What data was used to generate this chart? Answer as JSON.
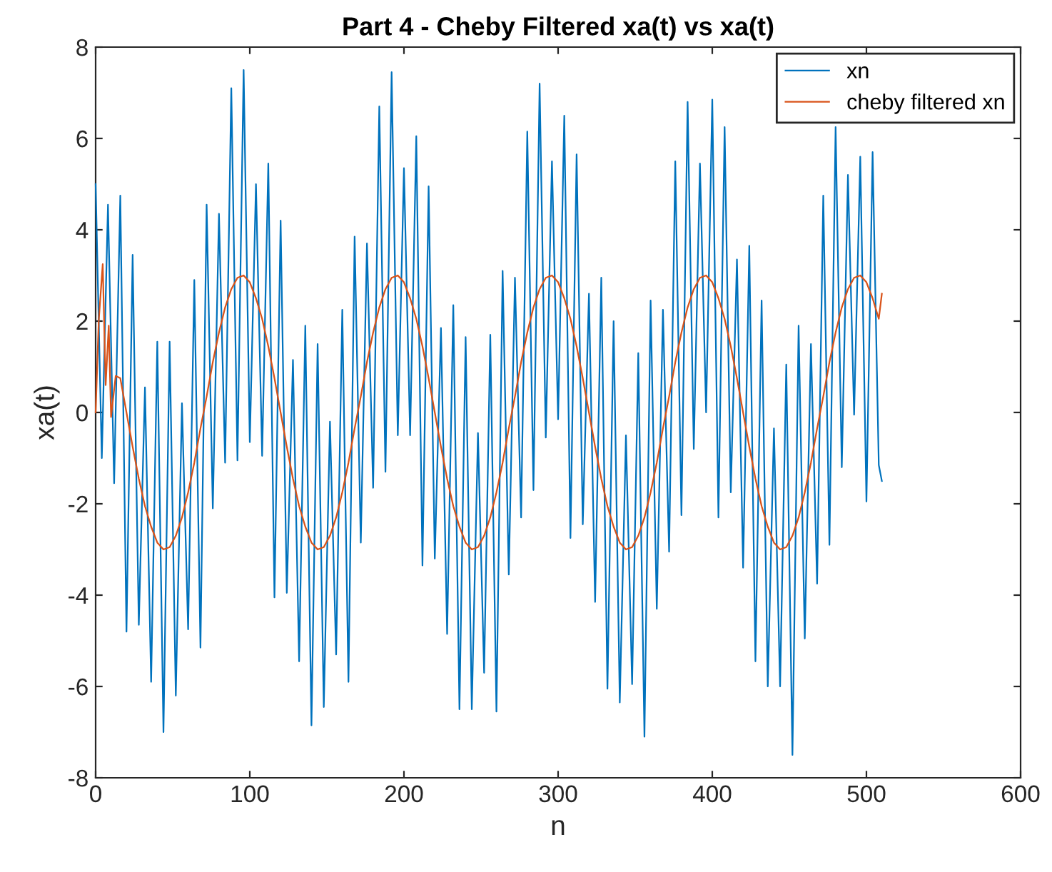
{
  "chart_data": {
    "type": "line",
    "title": "Part 4 - Cheby Filtered xa(t) vs xa(t)",
    "xlabel": "n",
    "ylabel": "xa(t)",
    "xlim": [
      0,
      600
    ],
    "xticks": [
      0,
      100,
      200,
      300,
      400,
      500,
      600
    ],
    "ylim": [
      -8,
      8
    ],
    "yticks": [
      -8,
      -6,
      -4,
      -2,
      0,
      2,
      4,
      6,
      8
    ],
    "grid": false,
    "legend": "top right",
    "line_style": "solid",
    "marker": "none",
    "series": [
      {
        "name": "xn",
        "color": "#0072bd",
        "x": [
          0,
          4,
          8,
          12,
          16,
          20,
          24,
          28,
          32,
          36,
          40,
          44,
          48,
          52,
          56,
          60,
          64,
          68,
          72,
          76,
          80,
          84,
          88,
          92,
          96,
          100,
          104,
          108,
          112,
          116,
          120,
          124,
          128,
          132,
          136,
          140,
          144,
          148,
          152,
          156,
          160,
          164,
          168,
          172,
          176,
          180,
          184,
          188,
          192,
          196,
          200,
          204,
          208,
          212,
          216,
          220,
          224,
          228,
          232,
          236,
          240,
          244,
          248,
          252,
          256,
          260,
          264,
          268,
          272,
          276,
          280,
          284,
          288,
          292,
          296,
          300,
          304,
          308,
          312,
          316,
          320,
          324,
          328,
          332,
          336,
          340,
          344,
          348,
          352,
          356,
          360,
          364,
          368,
          372,
          376,
          380,
          384,
          388,
          392,
          396,
          400,
          404,
          408,
          412,
          416,
          420,
          424,
          428,
          432,
          436,
          440,
          444,
          448,
          452,
          456,
          460,
          464,
          468,
          472,
          476,
          480,
          484,
          488,
          492,
          496,
          500,
          504,
          508,
          510
        ],
        "values": [
          5.0,
          -1.0,
          4.55,
          -1.55,
          4.75,
          -4.8,
          3.45,
          -4.65,
          0.55,
          -5.9,
          1.55,
          -7.0,
          1.55,
          -6.2,
          0.2,
          -4.75,
          2.9,
          -5.15,
          4.55,
          -2.1,
          4.35,
          -1.1,
          7.1,
          -1.05,
          7.5,
          -0.65,
          5.0,
          -0.95,
          5.45,
          -4.05,
          4.2,
          -3.95,
          1.15,
          -5.45,
          1.9,
          -6.85,
          1.5,
          -6.45,
          -0.2,
          -5.3,
          2.25,
          -5.9,
          3.85,
          -2.85,
          3.7,
          -1.65,
          6.7,
          -1.3,
          7.45,
          -0.5,
          5.35,
          -0.5,
          6.05,
          -3.35,
          4.95,
          -3.2,
          1.85,
          -4.85,
          2.35,
          -6.5,
          1.65,
          -6.5,
          -0.45,
          -5.7,
          1.7,
          -6.55,
          3.1,
          -3.55,
          2.95,
          -2.3,
          6.15,
          -1.7,
          7.2,
          -0.55,
          5.5,
          -0.15,
          6.5,
          -2.75,
          5.65,
          -2.45,
          2.6,
          -4.15,
          2.95,
          -6.05,
          2.0,
          -6.35,
          -0.5,
          -5.95,
          1.3,
          -7.1,
          2.45,
          -4.3,
          2.25,
          -3.05,
          5.5,
          -2.25,
          6.8,
          -0.8,
          5.45,
          0.0,
          6.85,
          -2.3,
          6.25,
          -1.75,
          3.35,
          -3.4,
          3.65,
          -5.45,
          2.45,
          -6.0,
          -0.35,
          -6.0,
          1.05,
          -7.5,
          1.9,
          -4.95,
          1.5,
          -3.75,
          4.75,
          -2.9,
          6.25,
          -1.2,
          5.2,
          -0.05,
          5.6,
          -1.95,
          5.7,
          -1.15,
          -1.5
        ]
      },
      {
        "name": "cheby filtered xn",
        "color": "#d95319",
        "x": [
          0,
          2,
          4.6,
          6.5,
          8.5,
          10,
          13,
          16,
          20,
          24,
          28,
          32,
          36,
          40,
          44,
          48,
          52,
          56,
          60,
          64,
          68,
          72,
          76,
          80,
          84,
          88,
          92,
          96,
          100,
          104,
          108,
          112,
          116,
          120,
          124,
          128,
          132,
          136,
          140,
          144,
          148,
          152,
          156,
          160,
          164,
          168,
          172,
          176,
          180,
          184,
          188,
          192,
          196,
          200,
          204,
          208,
          212,
          216,
          220,
          224,
          228,
          232,
          236,
          240,
          244,
          248,
          252,
          256,
          260,
          264,
          268,
          272,
          276,
          280,
          284,
          288,
          292,
          296,
          300,
          304,
          308,
          312,
          316,
          320,
          324,
          328,
          332,
          336,
          340,
          344,
          348,
          352,
          356,
          360,
          364,
          368,
          372,
          376,
          380,
          384,
          388,
          392,
          396,
          400,
          404,
          408,
          412,
          416,
          420,
          424,
          428,
          432,
          436,
          440,
          444,
          448,
          452,
          456,
          460,
          464,
          468,
          472,
          476,
          480,
          484,
          488,
          492,
          496,
          500,
          504,
          508,
          510
        ],
        "values": [
          0,
          2.0,
          3.25,
          0.6,
          1.9,
          -0.1,
          0.8,
          0.75,
          0,
          -0.75,
          -1.45,
          -2.05,
          -2.5,
          -2.85,
          -3,
          -2.95,
          -2.7,
          -2.3,
          -1.75,
          -1.1,
          -0.35,
          0.35,
          1.1,
          1.75,
          2.3,
          2.7,
          2.95,
          3,
          2.85,
          2.5,
          2.05,
          1.45,
          0.75,
          0,
          -0.75,
          -1.45,
          -2.05,
          -2.5,
          -2.85,
          -3,
          -2.95,
          -2.7,
          -2.3,
          -1.75,
          -1.1,
          -0.35,
          0.35,
          1.1,
          1.75,
          2.3,
          2.7,
          2.95,
          3,
          2.85,
          2.5,
          2.05,
          1.45,
          0.75,
          0,
          -0.75,
          -1.45,
          -2.05,
          -2.5,
          -2.85,
          -3,
          -2.95,
          -2.7,
          -2.3,
          -1.75,
          -1.1,
          -0.35,
          0.35,
          1.1,
          1.75,
          2.3,
          2.7,
          2.95,
          3,
          2.85,
          2.5,
          2.05,
          1.45,
          0.75,
          0,
          -0.75,
          -1.45,
          -2.05,
          -2.5,
          -2.85,
          -3,
          -2.95,
          -2.7,
          -2.3,
          -1.75,
          -1.1,
          -0.35,
          0.35,
          1.1,
          1.75,
          2.3,
          2.7,
          2.95,
          3,
          2.85,
          2.5,
          2.05,
          1.45,
          0.75,
          0,
          -0.75,
          -1.45,
          -2.05,
          -2.5,
          -2.85,
          -3,
          -2.95,
          -2.7,
          -2.3,
          -1.75,
          -1.1,
          -0.35,
          0.35,
          1.1,
          1.75,
          2.3,
          2.7,
          2.95,
          3,
          2.85,
          2.5,
          2.05,
          2.6
        ]
      }
    ]
  }
}
